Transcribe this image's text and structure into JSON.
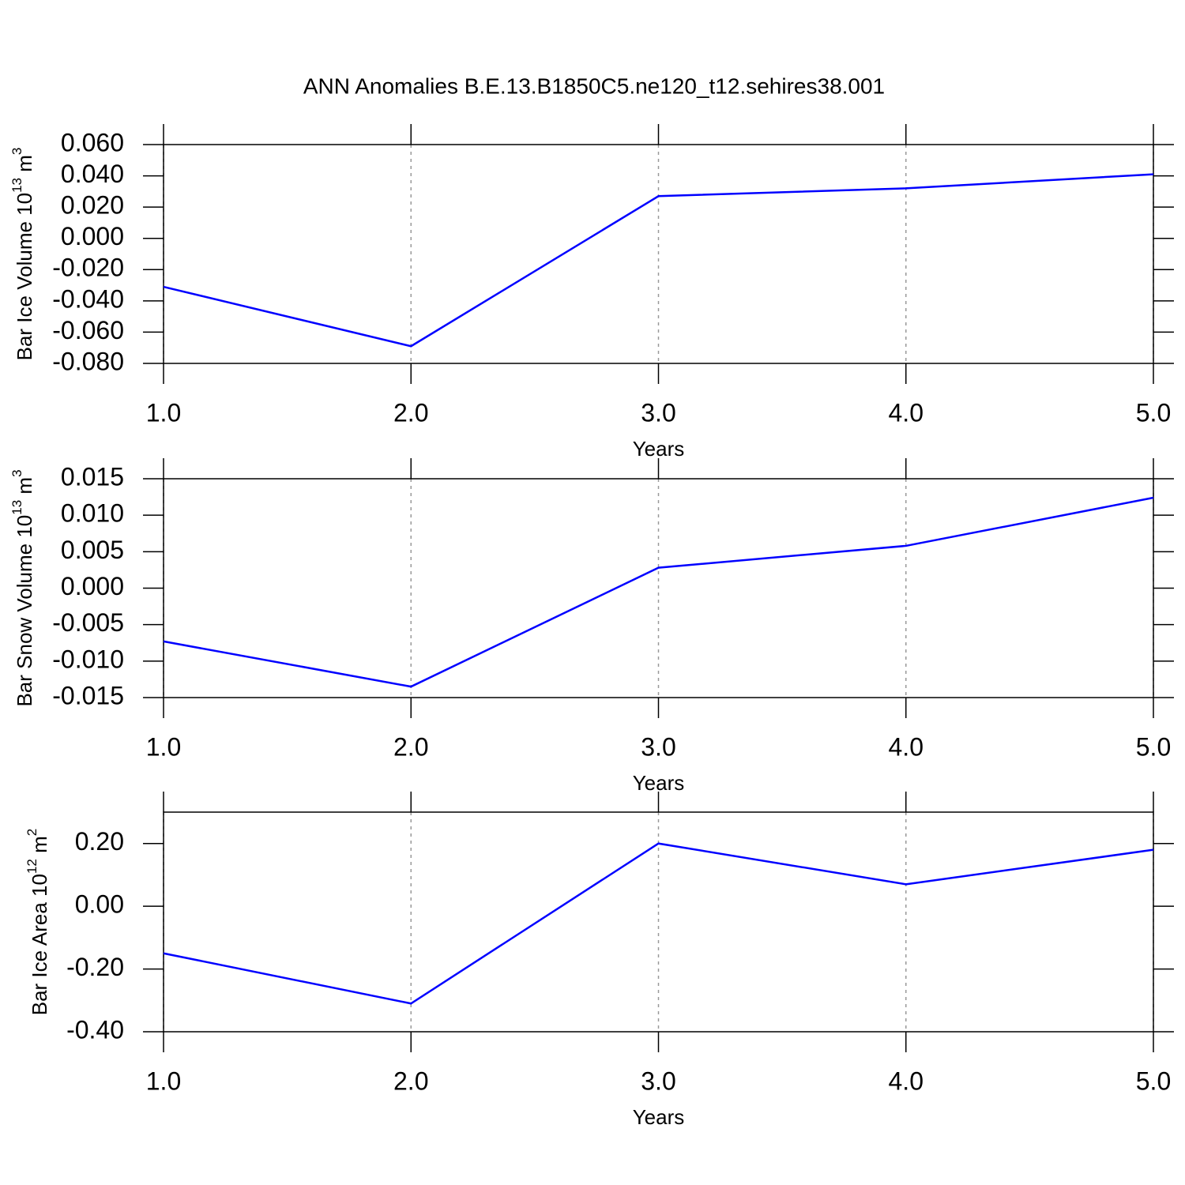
{
  "title": "ANN Anomalies B.E.13.B1850C5.ne120_t12.sehires38.001",
  "chart_data": [
    {
      "type": "line",
      "ylabel": [
        "Bar Ice Volume 10",
        "13",
        " m",
        "3"
      ],
      "xlabel": "Years",
      "x": [
        1,
        2,
        3,
        4,
        5
      ],
      "series": [
        {
          "color": "#0000ff",
          "values": [
            -0.031,
            -0.069,
            0.027,
            0.032,
            0.041
          ]
        }
      ],
      "xlim": [
        1,
        5
      ],
      "ylim": [
        -0.08,
        0.06
      ],
      "xticks": [
        {
          "value": 1,
          "label": "1.0"
        },
        {
          "value": 2,
          "label": "2.0"
        },
        {
          "value": 3,
          "label": "3.0"
        },
        {
          "value": 4,
          "label": "4.0"
        },
        {
          "value": 5,
          "label": "5.0"
        }
      ],
      "yticks": [
        {
          "value": -0.08,
          "label": "-0.080"
        },
        {
          "value": -0.06,
          "label": "-0.060"
        },
        {
          "value": -0.04,
          "label": "-0.040"
        },
        {
          "value": -0.02,
          "label": "-0.020"
        },
        {
          "value": 0,
          "label": "0.000"
        },
        {
          "value": 0.02,
          "label": "0.020"
        },
        {
          "value": 0.04,
          "label": "0.040"
        },
        {
          "value": 0.06,
          "label": "0.060"
        }
      ],
      "grid": "x"
    },
    {
      "type": "line",
      "ylabel": [
        "Bar Snow Volume 10",
        "13",
        " m",
        "3"
      ],
      "xlabel": "Years",
      "x": [
        1,
        2,
        3,
        4,
        5
      ],
      "series": [
        {
          "color": "#0000ff",
          "values": [
            -0.0073,
            -0.0135,
            0.0028,
            0.0058,
            0.0124
          ]
        }
      ],
      "xlim": [
        1,
        5
      ],
      "ylim": [
        -0.015,
        0.015
      ],
      "xticks": [
        {
          "value": 1,
          "label": "1.0"
        },
        {
          "value": 2,
          "label": "2.0"
        },
        {
          "value": 3,
          "label": "3.0"
        },
        {
          "value": 4,
          "label": "4.0"
        },
        {
          "value": 5,
          "label": "5.0"
        }
      ],
      "yticks": [
        {
          "value": -0.015,
          "label": "-0.015"
        },
        {
          "value": -0.01,
          "label": "-0.010"
        },
        {
          "value": -0.005,
          "label": "-0.005"
        },
        {
          "value": 0,
          "label": "0.000"
        },
        {
          "value": 0.005,
          "label": "0.005"
        },
        {
          "value": 0.01,
          "label": "0.010"
        },
        {
          "value": 0.015,
          "label": "0.015"
        }
      ],
      "grid": "x"
    },
    {
      "type": "line",
      "ylabel": [
        "Bar Ice Area 10",
        "12",
        " m",
        "2"
      ],
      "xlabel": "Years",
      "x": [
        1,
        2,
        3,
        4,
        5
      ],
      "series": [
        {
          "color": "#0000ff",
          "values": [
            -0.15,
            -0.31,
            0.2,
            0.07,
            0.18
          ]
        }
      ],
      "xlim": [
        1,
        5
      ],
      "ylim": [
        -0.4,
        0.3
      ],
      "xticks": [
        {
          "value": 1,
          "label": "1.0"
        },
        {
          "value": 2,
          "label": "2.0"
        },
        {
          "value": 3,
          "label": "3.0"
        },
        {
          "value": 4,
          "label": "4.0"
        },
        {
          "value": 5,
          "label": "5.0"
        }
      ],
      "yticks": [
        {
          "value": -0.4,
          "label": "-0.40"
        },
        {
          "value": -0.2,
          "label": "-0.20"
        },
        {
          "value": 0,
          "label": "0.00"
        },
        {
          "value": 0.2,
          "label": "0.20"
        }
      ],
      "grid": "x"
    }
  ]
}
